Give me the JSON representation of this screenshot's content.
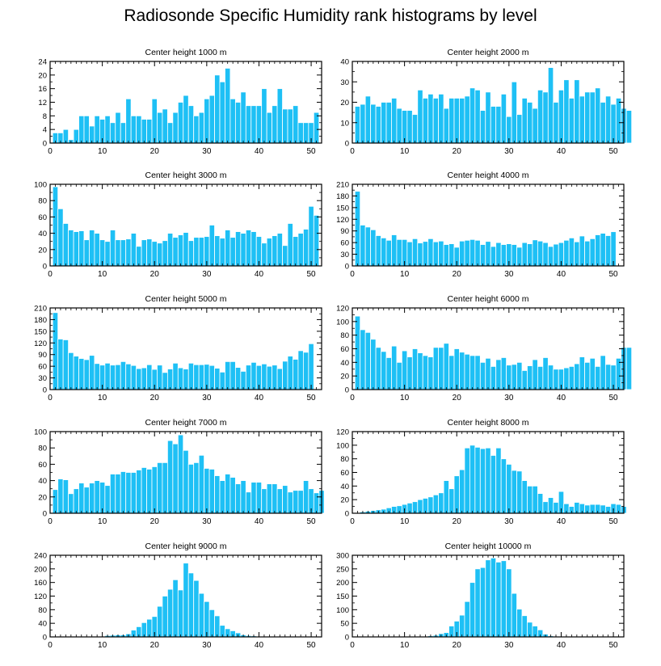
{
  "title": "Radiosonde Specific Humidity rank histograms by level",
  "colors": {
    "bar": "#1ec0f5",
    "bar_edge": "#ffffff",
    "axis": "#000000"
  },
  "chart_data": [
    {
      "type": "bar",
      "title": "Center height 1000 m",
      "xlabel": "",
      "ylabel": "",
      "xlim": [
        0,
        52
      ],
      "ylim": [
        0,
        24
      ],
      "xticks": [
        0,
        10,
        20,
        30,
        40,
        50
      ],
      "yticks": [
        0,
        4,
        8,
        12,
        16,
        20,
        24
      ],
      "values": [
        3,
        3,
        4,
        1,
        4,
        8,
        8,
        5,
        8,
        7,
        8,
        6,
        9,
        6,
        13,
        8,
        8,
        7,
        7,
        13,
        9,
        10,
        6,
        9,
        12,
        14,
        11,
        8,
        9,
        13,
        14,
        20,
        18,
        22,
        13,
        12,
        15,
        11,
        11,
        11,
        16,
        9,
        11,
        16,
        10,
        10,
        11,
        6,
        6,
        6,
        9
      ]
    },
    {
      "type": "bar",
      "title": "Center height 2000 m",
      "xlabel": "",
      "ylabel": "",
      "xlim": [
        0,
        52
      ],
      "ylim": [
        0,
        40
      ],
      "xticks": [
        0,
        10,
        20,
        30,
        40,
        50
      ],
      "yticks": [
        0,
        10,
        20,
        30,
        40
      ],
      "values": [
        18,
        19,
        23,
        19,
        18,
        20,
        20,
        22,
        17,
        16,
        16,
        14,
        26,
        22,
        24,
        22,
        24,
        17,
        22,
        22,
        22,
        23,
        27,
        26,
        16,
        25,
        18,
        18,
        24,
        13,
        30,
        14,
        22,
        20,
        17,
        26,
        25,
        37,
        20,
        26,
        31,
        22,
        31,
        23,
        25,
        25,
        27,
        20,
        23,
        19,
        22,
        17,
        16
      ]
    },
    {
      "type": "bar",
      "title": "Center height 3000 m",
      "xlabel": "",
      "ylabel": "",
      "xlim": [
        0,
        52
      ],
      "ylim": [
        0,
        100
      ],
      "xticks": [
        0,
        10,
        20,
        30,
        40,
        50
      ],
      "yticks": [
        0,
        20,
        40,
        60,
        80,
        100
      ],
      "values": [
        97,
        70,
        52,
        44,
        42,
        43,
        32,
        44,
        40,
        32,
        30,
        44,
        32,
        32,
        33,
        40,
        24,
        32,
        33,
        30,
        28,
        31,
        40,
        35,
        38,
        41,
        31,
        35,
        35,
        36,
        50,
        37,
        34,
        44,
        35,
        42,
        40,
        44,
        42,
        36,
        28,
        34,
        37,
        40,
        25,
        52,
        36,
        40,
        45,
        73,
        62
      ]
    },
    {
      "type": "bar",
      "title": "Center height 4000 m",
      "xlabel": "",
      "ylabel": "",
      "xlim": [
        0,
        52
      ],
      "ylim": [
        0,
        210
      ],
      "xticks": [
        0,
        10,
        20,
        30,
        40,
        50
      ],
      "yticks": [
        0,
        30,
        60,
        90,
        120,
        150,
        180,
        210
      ],
      "values": [
        192,
        105,
        100,
        93,
        78,
        72,
        66,
        80,
        68,
        68,
        62,
        70,
        59,
        63,
        70,
        62,
        64,
        55,
        57,
        48,
        64,
        66,
        68,
        66,
        55,
        63,
        50,
        60,
        55,
        57,
        55,
        48,
        60,
        57,
        67,
        64,
        60,
        50,
        56,
        60,
        66,
        72,
        62,
        77,
        64,
        70,
        80,
        84,
        78,
        88
      ]
    },
    {
      "type": "bar",
      "title": "Center height 5000 m",
      "xlabel": "",
      "ylabel": "",
      "xlim": [
        0,
        52
      ],
      "ylim": [
        0,
        210
      ],
      "xticks": [
        0,
        10,
        20,
        30,
        40,
        50
      ],
      "yticks": [
        0,
        30,
        60,
        90,
        120,
        150,
        180,
        210
      ],
      "values": [
        198,
        130,
        128,
        95,
        86,
        80,
        77,
        88,
        67,
        63,
        68,
        63,
        64,
        72,
        66,
        62,
        54,
        56,
        64,
        52,
        63,
        44,
        53,
        68,
        56,
        53,
        68,
        64,
        64,
        65,
        62,
        55,
        45,
        72,
        72,
        57,
        47,
        63,
        70,
        62,
        66,
        60,
        63,
        54,
        73,
        86,
        78,
        100,
        96,
        118
      ]
    },
    {
      "type": "bar",
      "title": "Center height 6000 m",
      "xlabel": "",
      "ylabel": "",
      "xlim": [
        0,
        52
      ],
      "ylim": [
        0,
        120
      ],
      "xticks": [
        0,
        10,
        20,
        30,
        40,
        50
      ],
      "yticks": [
        0,
        20,
        40,
        60,
        80,
        100,
        120
      ],
      "values": [
        108,
        88,
        84,
        74,
        62,
        56,
        47,
        64,
        40,
        57,
        48,
        60,
        54,
        50,
        48,
        62,
        62,
        68,
        50,
        60,
        55,
        52,
        50,
        50,
        40,
        46,
        34,
        44,
        47,
        36,
        37,
        40,
        28,
        35,
        44,
        34,
        47,
        36,
        30,
        30,
        32,
        34,
        38,
        48,
        40,
        46,
        34,
        50,
        37,
        36,
        46,
        62,
        62
      ]
    },
    {
      "type": "bar",
      "title": "Center height 7000 m",
      "xlabel": "",
      "ylabel": "",
      "xlim": [
        0,
        52
      ],
      "ylim": [
        0,
        100
      ],
      "xticks": [
        0,
        10,
        20,
        30,
        40,
        50
      ],
      "yticks": [
        0,
        20,
        40,
        60,
        80,
        100
      ],
      "values": [
        29,
        42,
        41,
        24,
        30,
        37,
        32,
        37,
        40,
        38,
        34,
        48,
        48,
        51,
        50,
        50,
        53,
        56,
        54,
        57,
        62,
        62,
        89,
        85,
        96,
        77,
        60,
        62,
        71,
        55,
        54,
        46,
        40,
        48,
        44,
        36,
        40,
        26,
        38,
        38,
        30,
        36,
        36,
        30,
        34,
        26,
        28,
        28,
        40,
        30,
        25,
        28
      ]
    },
    {
      "type": "bar",
      "title": "Center height 8000 m",
      "xlabel": "",
      "ylabel": "",
      "xlim": [
        0,
        52
      ],
      "ylim": [
        0,
        120
      ],
      "xticks": [
        0,
        10,
        20,
        30,
        40,
        50
      ],
      "yticks": [
        0,
        20,
        40,
        60,
        80,
        100,
        120
      ],
      "values": [
        1,
        2,
        3,
        4,
        5,
        6,
        8,
        10,
        11,
        13,
        15,
        17,
        20,
        22,
        24,
        27,
        30,
        48,
        36,
        55,
        64,
        96,
        100,
        97,
        95,
        96,
        85,
        96,
        80,
        72,
        63,
        62,
        48,
        40,
        40,
        29,
        17,
        23,
        16,
        32,
        14,
        10,
        16,
        14,
        12,
        13,
        13,
        12,
        10,
        14,
        13,
        10
      ]
    },
    {
      "type": "bar",
      "title": "Center height 9000 m",
      "xlabel": "",
      "ylabel": "",
      "xlim": [
        0,
        52
      ],
      "ylim": [
        0,
        240
      ],
      "xticks": [
        0,
        10,
        20,
        30,
        40,
        50
      ],
      "yticks": [
        0,
        40,
        80,
        120,
        160,
        200,
        240
      ],
      "values": [
        0,
        0,
        0,
        0,
        0,
        0,
        0,
        1,
        2,
        2,
        4,
        5,
        6,
        6,
        9,
        20,
        30,
        42,
        52,
        60,
        90,
        120,
        140,
        168,
        138,
        217,
        188,
        166,
        128,
        104,
        80,
        62,
        34,
        24,
        18,
        12,
        6,
        4,
        3,
        2,
        2,
        1,
        2,
        1,
        0,
        0,
        0,
        0,
        0,
        0,
        0
      ]
    },
    {
      "type": "bar",
      "title": "Center height 10000 m",
      "xlabel": "",
      "ylabel": "",
      "xlim": [
        0,
        52
      ],
      "ylim": [
        0,
        300
      ],
      "xticks": [
        0,
        10,
        20,
        30,
        40,
        50
      ],
      "yticks": [
        0,
        50,
        100,
        150,
        200,
        250,
        300
      ],
      "values": [
        0,
        0,
        0,
        0,
        0,
        0,
        0,
        0,
        0,
        0,
        0,
        0,
        1,
        2,
        4,
        6,
        12,
        16,
        40,
        58,
        80,
        130,
        200,
        250,
        255,
        283,
        290,
        275,
        280,
        250,
        160,
        102,
        78,
        54,
        40,
        26,
        10,
        4,
        2,
        1,
        1,
        0,
        0,
        0,
        0,
        0,
        0,
        0,
        0,
        0,
        0
      ]
    }
  ]
}
